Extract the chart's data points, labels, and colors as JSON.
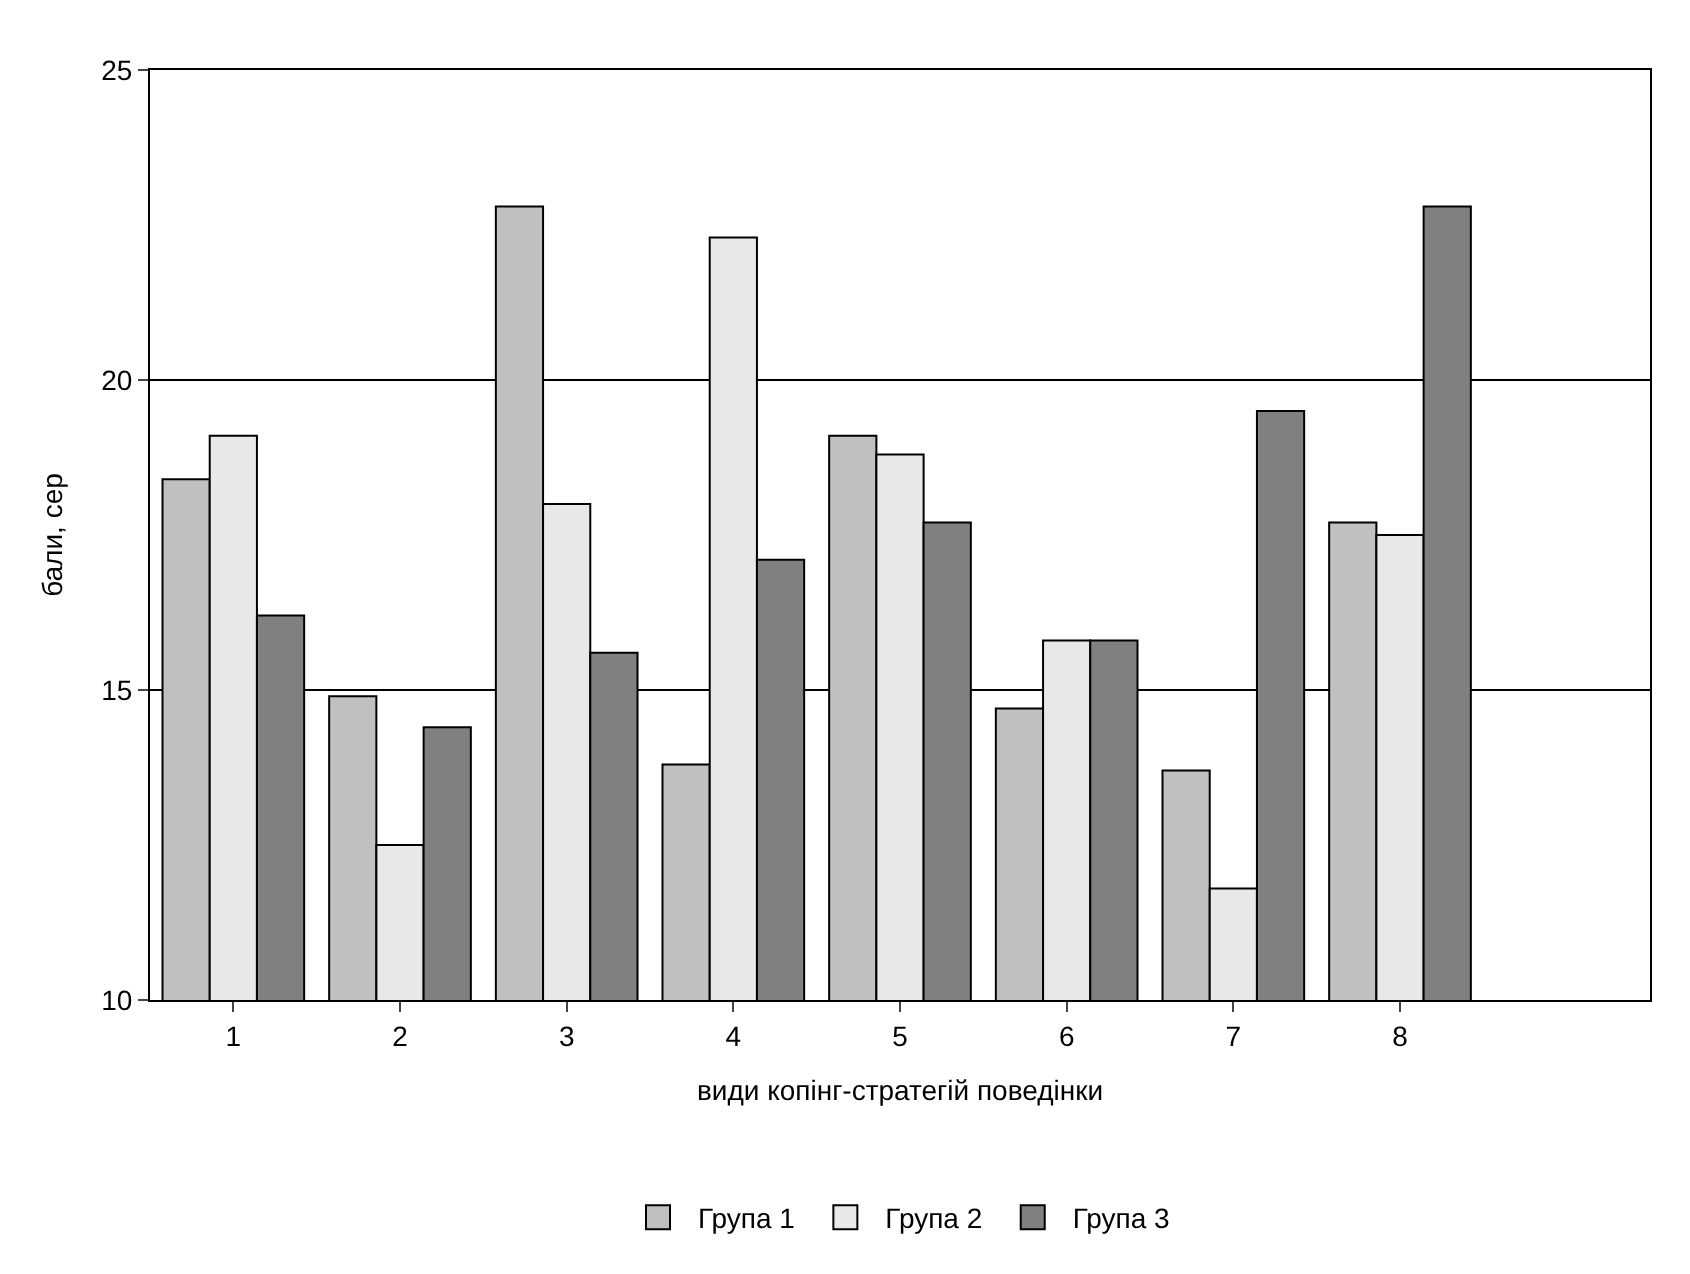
{
  "chart_data": {
    "type": "bar",
    "xlabel": "види копінг-стратегій поведінки",
    "ylabel": "бали, сер",
    "categories": [
      "1",
      "2",
      "3",
      "4",
      "5",
      "6",
      "7",
      "8",
      null
    ],
    "series": [
      {
        "name": "Група 1",
        "color": "#c0c0c0",
        "values": [
          18.4,
          14.9,
          22.8,
          13.8,
          19.1,
          14.7,
          13.7,
          17.7,
          null
        ]
      },
      {
        "name": "Група 2",
        "color": "#e8e8e8",
        "values": [
          19.1,
          12.5,
          18.0,
          22.3,
          18.8,
          15.8,
          11.8,
          17.5,
          null
        ]
      },
      {
        "name": "Група 3",
        "color": "#808080",
        "values": [
          16.2,
          14.4,
          15.6,
          17.1,
          17.7,
          15.8,
          19.5,
          22.8,
          null
        ]
      }
    ],
    "ylim": [
      10,
      25
    ],
    "yticks": [
      10,
      15,
      20,
      25
    ],
    "grid": "y",
    "legend": "bottom"
  }
}
